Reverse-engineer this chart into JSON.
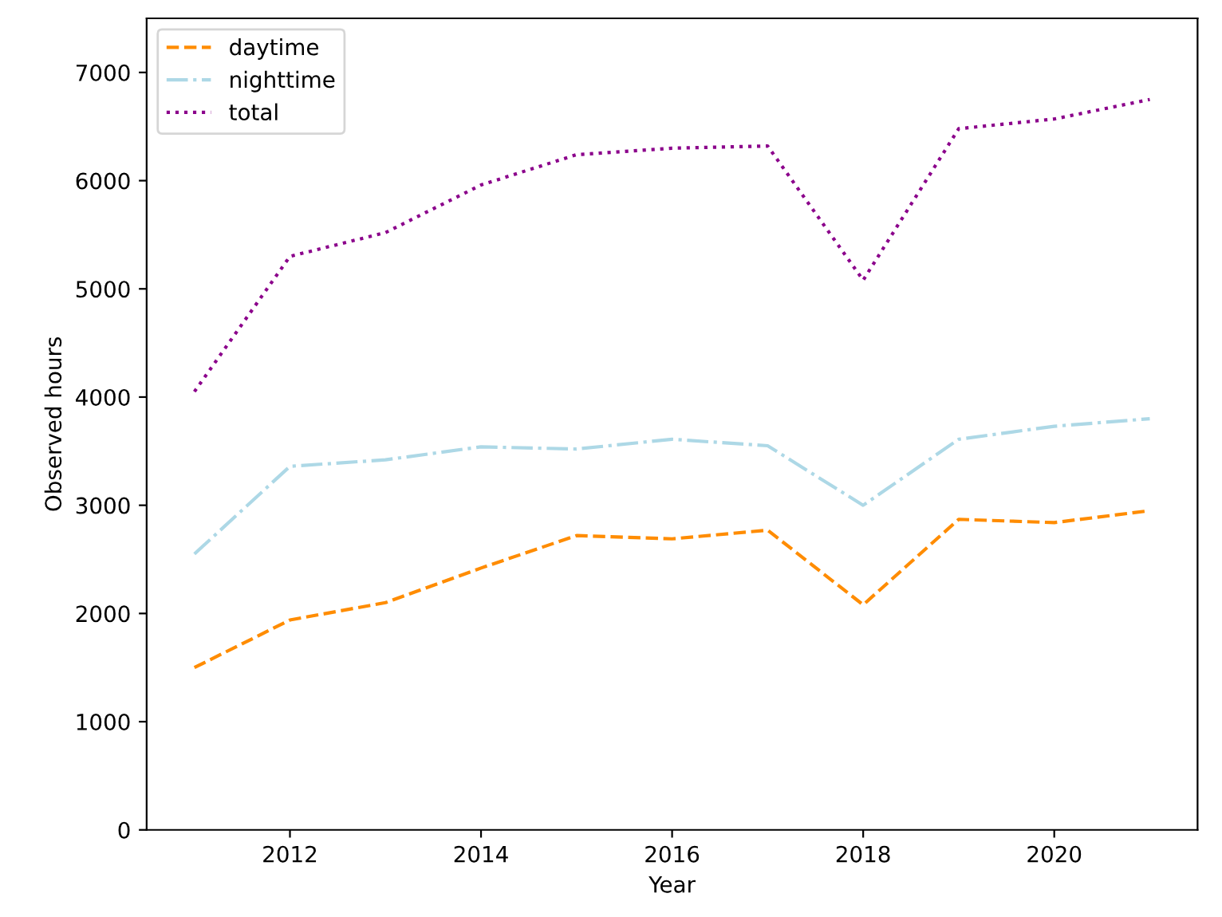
{
  "chart_data": {
    "type": "line",
    "xlabel": "Year",
    "ylabel": "Observed hours",
    "x": [
      2011,
      2012,
      2013,
      2014,
      2015,
      2016,
      2017,
      2018,
      2019,
      2020,
      2021
    ],
    "series": [
      {
        "name": "daytime",
        "color": "#ff8c00",
        "line_style": "dashed",
        "values": [
          1500,
          1940,
          2100,
          2420,
          2720,
          2690,
          2770,
          2080,
          2870,
          2840,
          2950
        ]
      },
      {
        "name": "nighttime",
        "color": "#add8e6",
        "line_style": "dashdot",
        "values": [
          2550,
          3360,
          3420,
          3540,
          3520,
          3610,
          3550,
          3000,
          3610,
          3730,
          3800
        ]
      },
      {
        "name": "total",
        "color": "#8b008b",
        "line_style": "dotted",
        "values": [
          4050,
          5300,
          5520,
          5960,
          6240,
          6300,
          6320,
          5080,
          6480,
          6570,
          6750
        ]
      }
    ],
    "xlim": [
      2010.5,
      2021.5
    ],
    "xticks": [
      2012,
      2014,
      2016,
      2018,
      2020
    ],
    "ylim": [
      0,
      7500
    ],
    "yticks": [
      0,
      1000,
      2000,
      3000,
      4000,
      5000,
      6000,
      7000
    ],
    "legend": "top left",
    "grid": false
  }
}
